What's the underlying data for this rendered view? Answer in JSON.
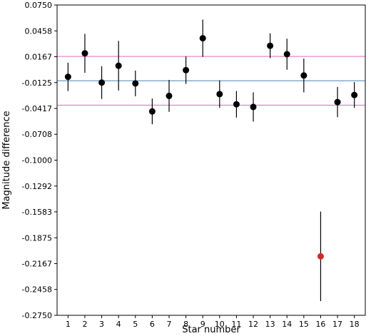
{
  "chart_data": {
    "type": "scatter",
    "title": "",
    "xlabel": "Star number",
    "ylabel": "Magnitude difference",
    "xlim": [
      0.35,
      18.65
    ],
    "ylim": [
      -0.275,
      0.075
    ],
    "x_ticks": [
      "1",
      "2",
      "3",
      "4",
      "5",
      "6",
      "7",
      "8",
      "9",
      "10",
      "11",
      "12",
      "13",
      "14",
      "15",
      "16",
      "17",
      "18"
    ],
    "y_ticks": [
      "0.0750",
      "0.0458",
      "0.0167",
      "-0.0125",
      "-0.0417",
      "-0.0708",
      "-0.1000",
      "-0.1292",
      "-0.1583",
      "-0.1875",
      "-0.2167",
      "-0.2458",
      "-0.2750"
    ],
    "grid": false,
    "reference_lines": [
      {
        "y": 0.017,
        "color": "#e377c2"
      },
      {
        "y": -0.0105,
        "color": "#6c9bc6"
      },
      {
        "y": -0.038,
        "color": "#e377c2"
      }
    ],
    "points": [
      {
        "x": 1,
        "y": -0.006,
        "err": 0.016,
        "color": "#000000"
      },
      {
        "x": 2,
        "y": 0.0205,
        "err": 0.022,
        "color": "#000000"
      },
      {
        "x": 3,
        "y": -0.0125,
        "err": 0.0185,
        "color": "#000000"
      },
      {
        "x": 4,
        "y": 0.0065,
        "err": 0.028,
        "color": "#000000"
      },
      {
        "x": 5,
        "y": -0.0135,
        "err": 0.0145,
        "color": "#000000"
      },
      {
        "x": 6,
        "y": -0.045,
        "err": 0.0145,
        "color": "#000000"
      },
      {
        "x": 7,
        "y": -0.0275,
        "err": 0.018,
        "color": "#000000"
      },
      {
        "x": 8,
        "y": 0.0015,
        "err": 0.0155,
        "color": "#000000"
      },
      {
        "x": 9,
        "y": 0.0375,
        "err": 0.021,
        "color": "#000000"
      },
      {
        "x": 10,
        "y": -0.0255,
        "err": 0.0155,
        "color": "#000000"
      },
      {
        "x": 11,
        "y": -0.037,
        "err": 0.015,
        "color": "#000000"
      },
      {
        "x": 12,
        "y": -0.04,
        "err": 0.0165,
        "color": "#000000"
      },
      {
        "x": 13,
        "y": 0.029,
        "err": 0.014,
        "color": "#000000"
      },
      {
        "x": 14,
        "y": 0.0195,
        "err": 0.0175,
        "color": "#000000"
      },
      {
        "x": 15,
        "y": -0.0045,
        "err": 0.019,
        "color": "#000000"
      },
      {
        "x": 16,
        "y": -0.2085,
        "err": 0.0505,
        "color": "#d62728"
      },
      {
        "x": 17,
        "y": -0.0345,
        "err": 0.017,
        "color": "#000000"
      },
      {
        "x": 18,
        "y": -0.0265,
        "err": 0.0145,
        "color": "#000000"
      }
    ]
  }
}
